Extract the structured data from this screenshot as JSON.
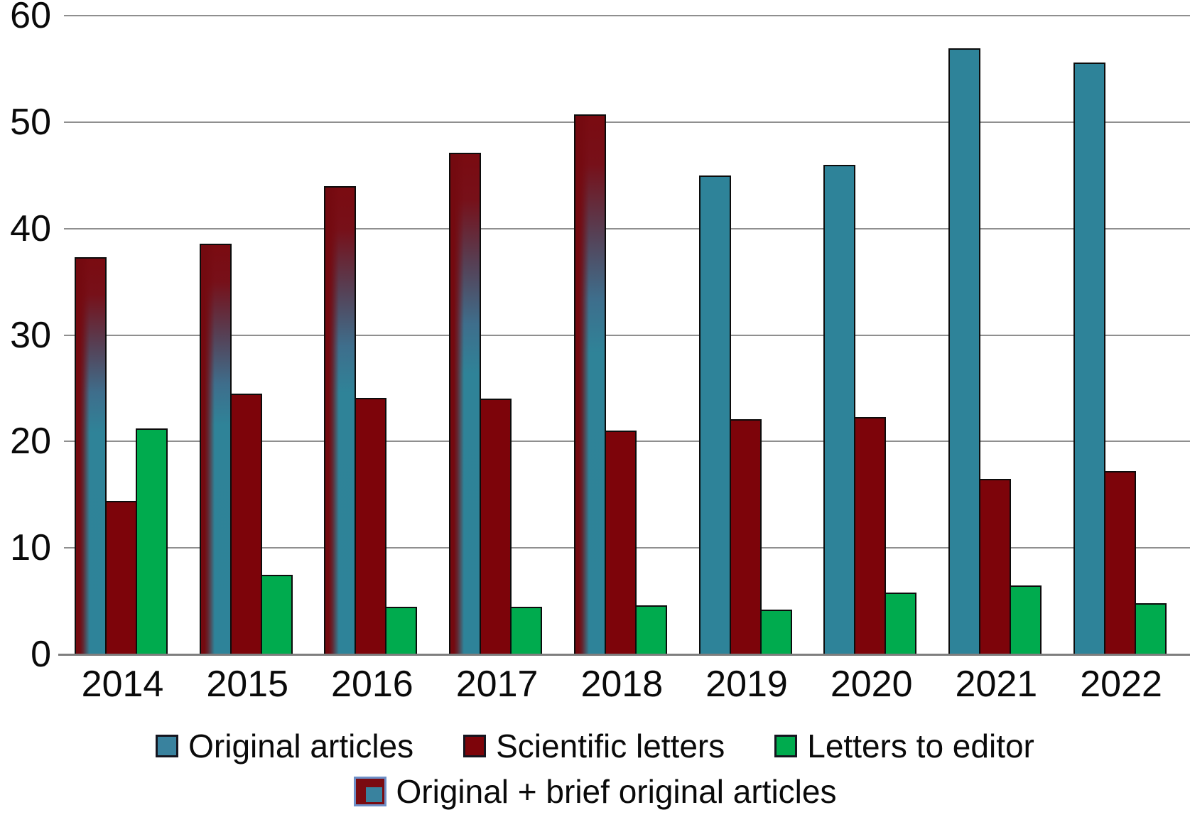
{
  "figure": {
    "background": "#ffffff"
  },
  "chart_data": {
    "type": "bar",
    "title": "",
    "xlabel": "",
    "ylabel": "",
    "categories": [
      "2014",
      "2015",
      "2016",
      "2017",
      "2018",
      "2019",
      "2020",
      "2021",
      "2022"
    ],
    "series": [
      {
        "name": "Original + brief original articles",
        "style": "gradient_red_over_teal",
        "values": [
          37.3,
          38.6,
          44.0,
          47.1,
          50.7,
          null,
          null,
          null,
          null
        ]
      },
      {
        "name": "Original articles",
        "style": "solid_teal",
        "values": [
          null,
          null,
          null,
          null,
          null,
          45.0,
          46.0,
          56.9,
          55.6
        ]
      },
      {
        "name": "Scientific letters",
        "style": "solid_dark_red",
        "values": [
          14.4,
          24.5,
          24.1,
          24.0,
          21.0,
          22.1,
          22.3,
          16.5,
          17.2
        ]
      },
      {
        "name": "Letters to editor",
        "style": "solid_green",
        "values": [
          21.2,
          7.5,
          4.5,
          4.5,
          4.6,
          4.2,
          5.8,
          6.5,
          4.8
        ]
      }
    ],
    "ylim": [
      0,
      60
    ],
    "yticks": [
      0,
      10,
      20,
      30,
      40,
      50,
      60
    ],
    "grid": "horizontal",
    "legend_position": "bottom"
  },
  "legend": {
    "row1": [
      {
        "label": "Original articles",
        "swatch": "teal"
      },
      {
        "label": "Scientific letters",
        "swatch": "red"
      },
      {
        "label": "Letters to editor",
        "swatch": "green"
      }
    ],
    "row2": [
      {
        "label": "Original + brief original articles",
        "swatch": "combo"
      }
    ]
  },
  "colors": {
    "teal": "#2E8399",
    "dark_red": "#7D040A",
    "green": "#00AB4E",
    "gradient_top_red": "#7A0B11",
    "bar_outline": "#0c0c0c",
    "gridline": "#8f8f8f",
    "axis_line": "#7f7f7f",
    "legend_combo_border": "#6D8FC7",
    "text": "#0a0a0a"
  }
}
